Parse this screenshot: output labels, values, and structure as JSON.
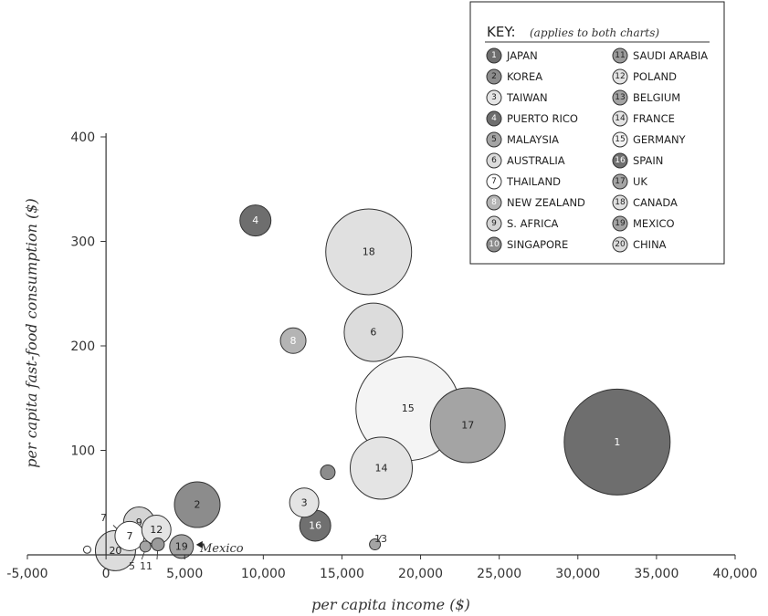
{
  "chart_data": {
    "type": "scatter",
    "subtype": "bubble",
    "xlabel": "per capita income ($)",
    "ylabel": "per capita fast-food consumption ($)",
    "xlim": [
      -5000,
      40000
    ],
    "ylim": [
      0,
      400
    ],
    "x_ticks": [
      -5000,
      0,
      5000,
      10000,
      15000,
      20000,
      25000,
      30000,
      35000,
      40000
    ],
    "x_tick_labels": [
      "-5,000",
      "0",
      "5,000",
      "10,000",
      "15,000",
      "20,000",
      "25,000",
      "30,000",
      "35,000",
      "40,000"
    ],
    "y_ticks": [
      100,
      200,
      300,
      400
    ],
    "y_tick_labels": [
      "100",
      "200",
      "300",
      "400"
    ],
    "grid": false,
    "legend": {
      "title": "KEY:",
      "note": "(applies to both charts)",
      "position": "top-right"
    },
    "points": [
      {
        "id": 1,
        "label": "1",
        "name": "JAPAN",
        "x": 32500,
        "y": 108,
        "size": 58,
        "color": "#6e6e6e",
        "text_color": "#ffffff"
      },
      {
        "id": 2,
        "label": "2",
        "name": "KOREA",
        "x": 5800,
        "y": 48,
        "size": 25,
        "color": "#8c8c8c",
        "text_color": "#222222"
      },
      {
        "id": 3,
        "label": "3",
        "name": "TAIWAN",
        "x": 12600,
        "y": 50,
        "size": 16,
        "color": "#e4e4e4",
        "text_color": "#222222"
      },
      {
        "id": 4,
        "label": "4",
        "name": "PUERTO RICO",
        "x": 9500,
        "y": 320,
        "size": 17,
        "color": "#6e6e6e",
        "text_color": "#ffffff"
      },
      {
        "id": 5,
        "label": "5",
        "name": "MALAYSIA",
        "x": 2500,
        "y": 8,
        "size": 6,
        "color": "#a4a4a4",
        "text_color": "#222222"
      },
      {
        "id": 6,
        "label": "6",
        "name": "AUSTRALIA",
        "x": 17000,
        "y": 213,
        "size": 32,
        "color": "#dcdcdc",
        "text_color": "#222222"
      },
      {
        "id": 7,
        "label": "7",
        "name": "THAILAND",
        "x": 1500,
        "y": 18,
        "size": 16,
        "color": "#ffffff",
        "text_color": "#222222"
      },
      {
        "id": 8,
        "label": "8",
        "name": "NEW ZEALAND",
        "x": 11900,
        "y": 205,
        "size": 14,
        "color": "#b4b4b4",
        "text_color": "#ffffff"
      },
      {
        "id": 9,
        "label": "9",
        "name": "S. AFRICA",
        "x": 2100,
        "y": 31,
        "size": 17,
        "color": "#d4d4d4",
        "text_color": "#222222"
      },
      {
        "id": 10,
        "label": "10",
        "name": "SINGAPORE",
        "x": 14100,
        "y": 79,
        "size": 8,
        "color": "#8c8c8c",
        "text_color": "#ffffff"
      },
      {
        "id": 11,
        "label": "11",
        "name": "SAUDI ARABIA",
        "x": 3300,
        "y": 10,
        "size": 7,
        "color": "#9a9a9a",
        "text_color": "#222222"
      },
      {
        "id": 12,
        "label": "12",
        "name": "POLAND",
        "x": 3200,
        "y": 24,
        "size": 16,
        "color": "#e4e4e4",
        "text_color": "#222222"
      },
      {
        "id": 13,
        "label": "13",
        "name": "BELGIUM",
        "x": 17100,
        "y": 10,
        "size": 6,
        "color": "#a4a4a4",
        "text_color": "#222222"
      },
      {
        "id": 14,
        "label": "14",
        "name": "FRANCE",
        "x": 17500,
        "y": 83,
        "size": 34,
        "color": "#e4e4e4",
        "text_color": "#222222"
      },
      {
        "id": 15,
        "label": "15",
        "name": "GERMANY",
        "x": 19200,
        "y": 140,
        "size": 57,
        "color": "#f4f4f4",
        "text_color": "#222222"
      },
      {
        "id": 16,
        "label": "16",
        "name": "SPAIN",
        "x": 13300,
        "y": 28,
        "size": 17,
        "color": "#707070",
        "text_color": "#ffffff"
      },
      {
        "id": 17,
        "label": "17",
        "name": "UK",
        "x": 23000,
        "y": 124,
        "size": 41,
        "color": "#a4a4a4",
        "text_color": "#222222"
      },
      {
        "id": 18,
        "label": "18",
        "name": "CANADA",
        "x": 16700,
        "y": 290,
        "size": 47,
        "color": "#e0e0e0",
        "text_color": "#222222"
      },
      {
        "id": 19,
        "label": "19",
        "name": "MEXICO",
        "x": 4800,
        "y": 8,
        "size": 13,
        "color": "#a4a4a4",
        "text_color": "#222222"
      },
      {
        "id": 20,
        "label": "20",
        "name": "CHINA",
        "x": 600,
        "y": 4,
        "size": 22,
        "color": "#dcdcdc",
        "text_color": "#222222"
      }
    ],
    "extra_marks": [
      {
        "x": -1200,
        "y": 5,
        "size": 4,
        "color": "#ffffff"
      }
    ],
    "annotations": [
      {
        "text": "Mexico",
        "arrow_to_point": 19
      },
      {
        "text": "7",
        "leader_to_point": 7
      },
      {
        "text": "5",
        "leader_to_point": 5
      },
      {
        "text": "11",
        "leader_to_point": 11
      },
      {
        "text": "13",
        "leader_to_point": 13
      }
    ]
  }
}
